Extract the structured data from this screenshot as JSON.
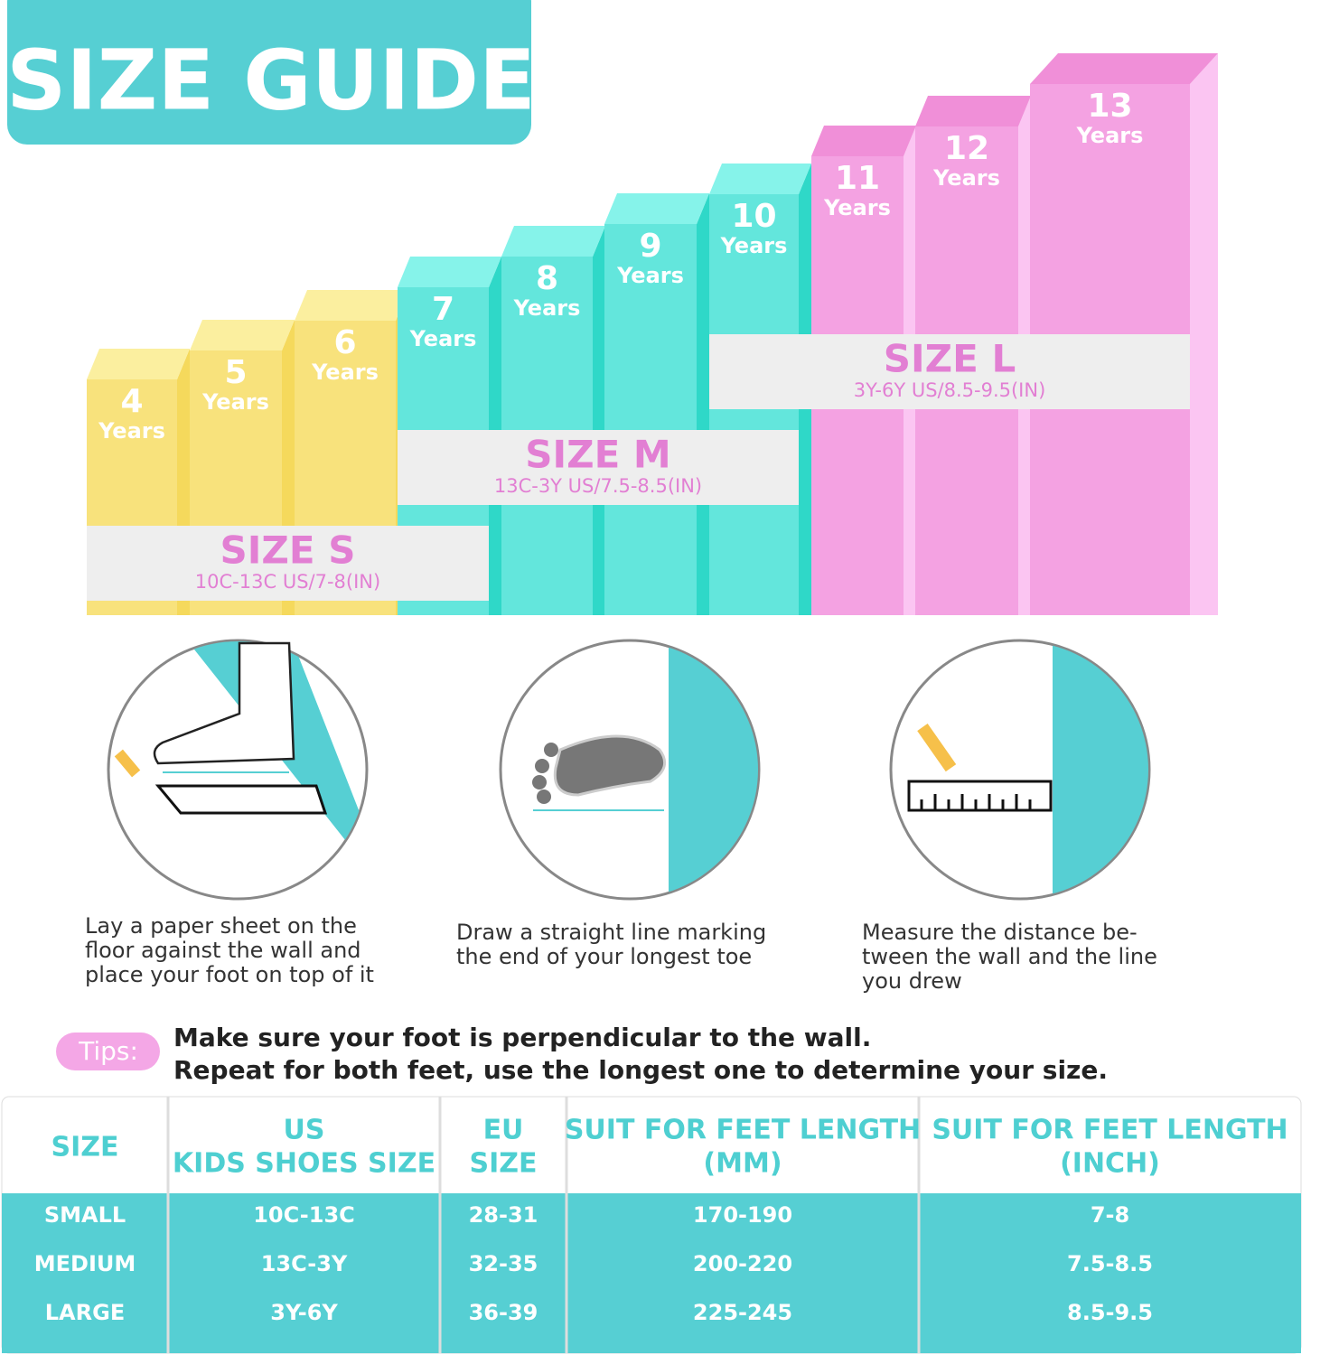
{
  "title": "SIZE GUIDE",
  "bars": [
    {
      "age": 4,
      "unit": "Years"
    },
    {
      "age": 5,
      "unit": "Years"
    },
    {
      "age": 6,
      "unit": "Years"
    },
    {
      "age": 7,
      "unit": "Years"
    },
    {
      "age": 8,
      "unit": "Years"
    },
    {
      "age": 9,
      "unit": "Years"
    },
    {
      "age": 10,
      "unit": "Years"
    },
    {
      "age": 11,
      "unit": "Years"
    },
    {
      "age": 12,
      "unit": "Years"
    },
    {
      "age": 13,
      "unit": "Years"
    }
  ],
  "size_bands": [
    {
      "name": "SIZE S",
      "detail": "10C-13C US/7-8(IN)"
    },
    {
      "name": "SIZE M",
      "detail": "13C-3Y US/7.5-8.5(IN)"
    },
    {
      "name": "SIZE L",
      "detail": "3Y-6Y US/8.5-9.5(IN)"
    }
  ],
  "steps": [
    [
      "Lay a paper sheet on the",
      "floor against the wall and",
      "place your foot on top of it"
    ],
    [
      "Draw a straight line marking",
      "the end of your longest toe"
    ],
    [
      "Measure the distance be-",
      "tween the wall and the line",
      "you drew"
    ]
  ],
  "tips": {
    "label": "Tips:",
    "lines": [
      "Make sure your foot is perpendicular to the wall.",
      "Repeat for both feet, use the longest one to determine your size."
    ]
  },
  "table": {
    "header": [
      [
        "SIZE"
      ],
      [
        "US",
        "KIDS SHOES SIZE"
      ],
      [
        "EU",
        "SIZE"
      ],
      [
        "SUIT FOR FEET LENGTH",
        "(MM)"
      ],
      [
        "SUIT FOR FEET LENGTH",
        "(INCH)"
      ]
    ],
    "rows": [
      [
        "SMALL",
        "10C-13C",
        "28-31",
        "170-190",
        "7-8"
      ],
      [
        "MEDIUM",
        "13C-3Y",
        "32-35",
        "200-220",
        "7.5-8.5"
      ],
      [
        "LARGE",
        "3Y-6Y",
        "36-39",
        "225-245",
        "8.5-9.5"
      ]
    ]
  }
}
